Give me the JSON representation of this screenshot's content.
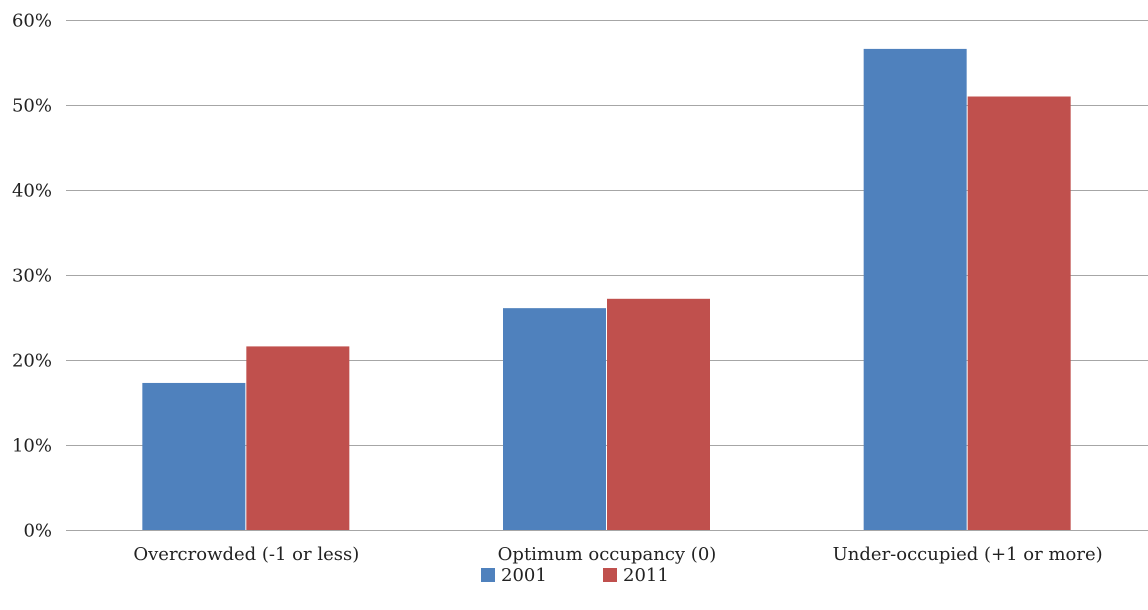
{
  "chart_data": {
    "type": "bar",
    "categories": [
      "Overcrowded (-1 or less)",
      "Optimum occupancy (0)",
      "Under-occupied (+1 or more)"
    ],
    "series": [
      {
        "name": "2001",
        "values": [
          17.3,
          26.1,
          56.6
        ],
        "color": "#4f81bd"
      },
      {
        "name": "2011",
        "values": [
          21.6,
          27.2,
          51.0
        ],
        "color": "#c0504d"
      }
    ],
    "ylim": [
      0,
      60
    ],
    "yticks": [
      "0%",
      "10%",
      "20%",
      "30%",
      "40%",
      "50%",
      "60%"
    ],
    "ytick_values": [
      0,
      10,
      20,
      30,
      40,
      50,
      60
    ],
    "grid": true,
    "legend_position": "bottom",
    "gridline_color": "#a6a6a6"
  }
}
